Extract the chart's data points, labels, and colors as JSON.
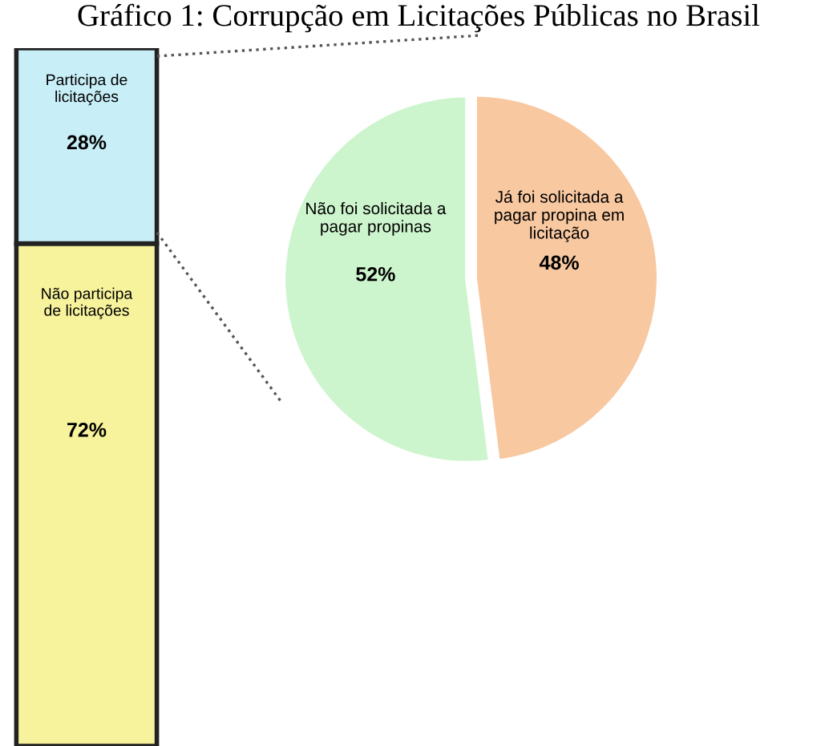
{
  "chart_data": [
    {
      "type": "bar",
      "title": "Gráfico 1: Corrupção em Licitações Públicas no Brasil",
      "stacked": true,
      "categories": [
        null
      ],
      "series": [
        {
          "name": "Não participa de licitações",
          "color": "#f7f39c",
          "values": [
            72
          ],
          "value_labels": [
            "72%"
          ]
        },
        {
          "name": "Participa de licitações",
          "color": "#c8eef7",
          "values": [
            28
          ],
          "value_labels": [
            "28%"
          ]
        }
      ]
    },
    {
      "type": "pie",
      "categories": [
        "Não foi solicitada a pagar propinas",
        "Já foi solicitada a pagar propina em licitação"
      ],
      "values": [
        52,
        48
      ],
      "colors": [
        "#cdf5cd",
        "#f8c8a0"
      ],
      "value_labels": [
        "52%",
        "48%"
      ]
    }
  ]
}
